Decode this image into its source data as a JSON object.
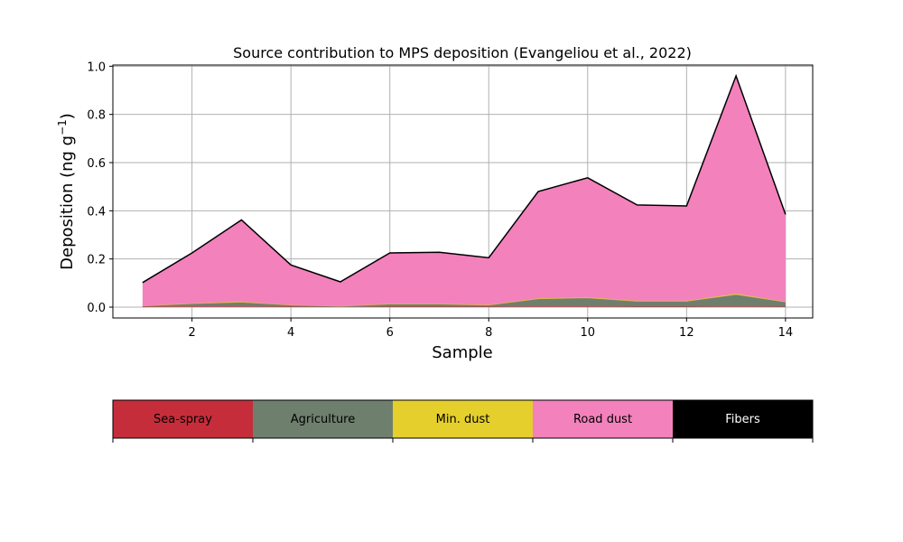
{
  "chart_data": {
    "type": "area",
    "stacked": true,
    "title": "Source contribution to MPS deposition (Evangeliou et al., 2022)",
    "xlabel": "Sample",
    "ylabel_main": "Deposition (ng g",
    "ylabel_sup": "−1",
    "ylabel_tail": ")",
    "x": [
      1,
      2,
      3,
      4,
      5,
      6,
      7,
      8,
      9,
      10,
      11,
      12,
      13,
      14
    ],
    "xlim": [
      0.4,
      14.55
    ],
    "ylim": [
      -0.045,
      1.005
    ],
    "xticks": [
      2,
      4,
      6,
      8,
      10,
      12,
      14
    ],
    "yticks": [
      0.0,
      0.2,
      0.4,
      0.6,
      0.8,
      1.0
    ],
    "ytick_labels": [
      "0.0",
      "0.2",
      "0.4",
      "0.6",
      "0.8",
      "1.0"
    ],
    "grid": true,
    "total": [
      0.102,
      0.225,
      0.362,
      0.175,
      0.105,
      0.225,
      0.228,
      0.205,
      0.48,
      0.537,
      0.424,
      0.42,
      0.96,
      0.385
    ],
    "series": [
      {
        "name": "Sea-spray",
        "color": "#c62d3a",
        "values": [
          0.002,
          0.003,
          0.003,
          0.002,
          0.001,
          0.002,
          0.002,
          0.002,
          0.003,
          0.003,
          0.002,
          0.002,
          0.003,
          0.002
        ]
      },
      {
        "name": "Agriculture",
        "color": "#6e7f6e",
        "values": [
          0.003,
          0.012,
          0.018,
          0.007,
          0.003,
          0.011,
          0.011,
          0.007,
          0.032,
          0.036,
          0.023,
          0.023,
          0.05,
          0.02
        ]
      },
      {
        "name": "Min. dust",
        "color": "#e5cf2d",
        "values": [
          0.001,
          0.002,
          0.003,
          0.001,
          0.001,
          0.002,
          0.002,
          0.002,
          0.003,
          0.003,
          0.002,
          0.002,
          0.004,
          0.002
        ]
      },
      {
        "name": "Road dust",
        "color": "#f381bc",
        "values": [
          0.096,
          0.208,
          0.338,
          0.165,
          0.1,
          0.21,
          0.213,
          0.194,
          0.442,
          0.495,
          0.397,
          0.393,
          0.903,
          0.361
        ]
      },
      {
        "name": "Fibers",
        "color": "#000000",
        "values": [
          0.0,
          0.0,
          0.0,
          0.0,
          0.0,
          0.0,
          0.0,
          0.0,
          0.0,
          0.0,
          0.0,
          0.0,
          0.0,
          0.0
        ]
      }
    ],
    "legend": {
      "placement": "bottom",
      "entries": [
        {
          "label": "Sea-spray",
          "color": "#c62d3a",
          "text_color": "#000000"
        },
        {
          "label": "Agriculture",
          "color": "#6e7f6e",
          "text_color": "#000000"
        },
        {
          "label": "Min. dust",
          "color": "#e5cf2d",
          "text_color": "#000000"
        },
        {
          "label": "Road dust",
          "color": "#f381bc",
          "text_color": "#000000"
        },
        {
          "label": "Fibers",
          "color": "#000000",
          "text_color": "#ffffff"
        }
      ]
    }
  }
}
